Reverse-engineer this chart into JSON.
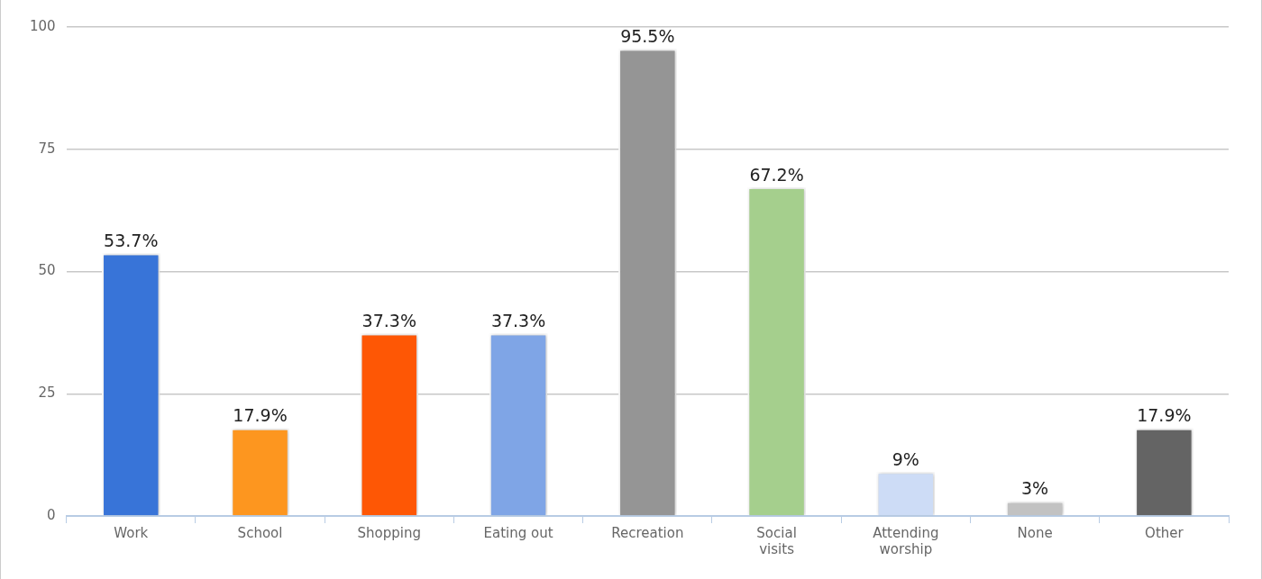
{
  "chart_data": {
    "type": "bar",
    "categories": [
      "Work",
      "School",
      "Shopping",
      "Eating out",
      "Recreation",
      "Social visits",
      "Attending worship",
      "None",
      "Other"
    ],
    "values": [
      53.7,
      17.9,
      37.3,
      37.3,
      95.5,
      67.2,
      9,
      3,
      17.9
    ],
    "value_labels": [
      "53.7%",
      "17.9%",
      "37.3%",
      "37.3%",
      "95.5%",
      "67.2%",
      "9%",
      "3%",
      "17.9%"
    ],
    "colors": [
      "#3874d8",
      "#fd961f",
      "#fe5705",
      "#7fa5e6",
      "#959595",
      "#a5cf8d",
      "#cddcf6",
      "#c2c2c2",
      "#646464"
    ],
    "ylim": [
      0,
      100
    ],
    "yticks": [
      0,
      25,
      50,
      75,
      100
    ],
    "grid": "y",
    "legend": false
  }
}
